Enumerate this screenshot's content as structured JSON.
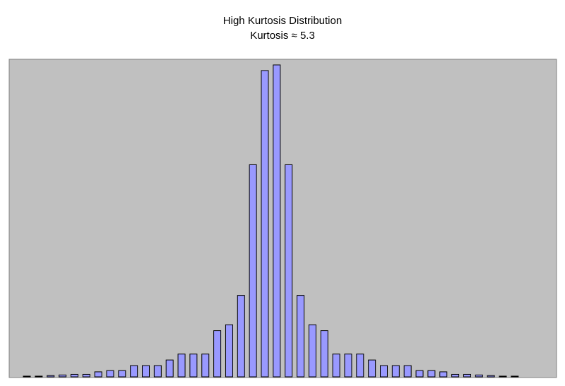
{
  "chart_data": {
    "type": "bar",
    "title": "High Kurtosis Distribution",
    "subtitle": "Kurtosis ≈ 5.3",
    "xlabel": "",
    "ylabel": "",
    "ylim": [
      0,
      1
    ],
    "grid": false,
    "values": [
      0.002,
      0.002,
      0.004,
      0.006,
      0.008,
      0.008,
      0.016,
      0.02,
      0.02,
      0.036,
      0.036,
      0.036,
      0.054,
      0.073,
      0.073,
      0.073,
      0.148,
      0.167,
      0.261,
      0.68,
      0.982,
      1.0,
      0.68,
      0.261,
      0.167,
      0.148,
      0.073,
      0.073,
      0.073,
      0.054,
      0.036,
      0.036,
      0.036,
      0.02,
      0.02,
      0.016,
      0.008,
      0.008,
      0.006,
      0.004,
      0.002,
      0.002
    ]
  },
  "colors": {
    "plot_background": "#c0c0c0",
    "bar_fill": "#9999ff",
    "bar_stroke": "#000000",
    "frame_stroke": "#808080",
    "text": "#000000"
  }
}
